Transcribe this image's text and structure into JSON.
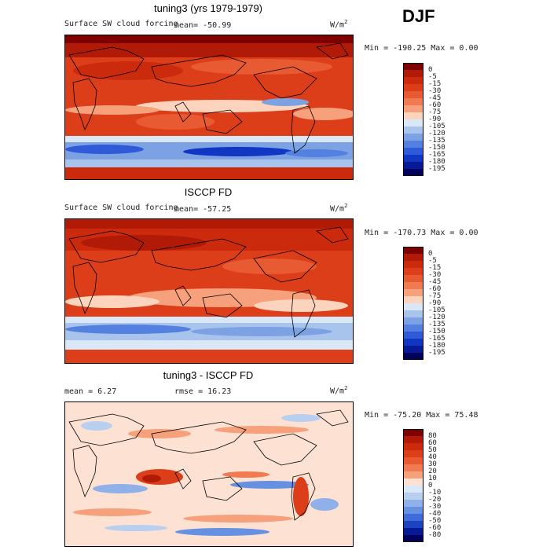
{
  "season": "DJF",
  "panels": [
    {
      "title": "tuning3 (yrs 1979-1979)",
      "variable": "Surface SW cloud forcing",
      "stat": "mean=  -50.99",
      "units": "W/m",
      "units_sup": "2",
      "minmax": "Min = -190.25 Max =    0.00"
    },
    {
      "title": "ISCCP FD",
      "variable": "Surface SW cloud forcing",
      "stat": "mean=  -57.25",
      "units": "W/m",
      "units_sup": "2",
      "minmax": "Min = -170.73 Max =    0.00"
    },
    {
      "title": "tuning3 - ISCCP FD",
      "mean_text": "mean =    6.27",
      "rmse_text": "rmse =   16.23",
      "units": "W/m",
      "units_sup": "2",
      "minmax": "Min = -75.20 Max =  75.48"
    }
  ],
  "chart_data": [
    {
      "type": "heatmap",
      "title": "tuning3 (yrs 1979-1979)",
      "variable": "Surface SW cloud forcing",
      "units": "W/m2",
      "mean": -50.99,
      "min": -190.25,
      "max": 0.0,
      "colorbar_levels": [
        "0",
        "-5",
        "-15",
        "-30",
        "-45",
        "-60",
        "-75",
        "-90",
        "-105",
        "-120",
        "-135",
        "-150",
        "-165",
        "-180",
        "-195"
      ],
      "colorbar_colors": [
        "#7f0000",
        "#b11a06",
        "#cc2a0c",
        "#dd3e1a",
        "#e85a31",
        "#f07a52",
        "#f7a07c",
        "#fcd3bd",
        "#dae7f7",
        "#a8c4ec",
        "#7da2e4",
        "#5480e0",
        "#2f5bd8",
        "#1236c4",
        "#061a96",
        "#00005f"
      ]
    },
    {
      "type": "heatmap",
      "title": "ISCCP FD",
      "variable": "Surface SW cloud forcing",
      "units": "W/m2",
      "mean": -57.25,
      "min": -170.73,
      "max": 0.0,
      "colorbar_levels": [
        "0",
        "-5",
        "-15",
        "-30",
        "-45",
        "-60",
        "-75",
        "-90",
        "-105",
        "-120",
        "-135",
        "-150",
        "-165",
        "-180",
        "-195"
      ],
      "colorbar_colors": [
        "#7f0000",
        "#b11a06",
        "#cc2a0c",
        "#dd3e1a",
        "#e85a31",
        "#f07a52",
        "#f7a07c",
        "#fcd3bd",
        "#dae7f7",
        "#a8c4ec",
        "#7da2e4",
        "#5480e0",
        "#2f5bd8",
        "#1236c4",
        "#061a96",
        "#00005f"
      ]
    },
    {
      "type": "heatmap",
      "title": "tuning3 - ISCCP FD",
      "units": "W/m2",
      "mean": 6.27,
      "rmse": 16.23,
      "min": -75.2,
      "max": 75.48,
      "colorbar_levels": [
        "80",
        "60",
        "50",
        "40",
        "30",
        "20",
        "10",
        "0",
        "-10",
        "-20",
        "-30",
        "-40",
        "-50",
        "-60",
        "-80"
      ],
      "colorbar_colors": [
        "#7f0000",
        "#b11a06",
        "#cc2a0c",
        "#dd3e1a",
        "#e85a31",
        "#f07a52",
        "#f7a07c",
        "#fde2d3",
        "#dae7f7",
        "#b9cff0",
        "#8fb0e8",
        "#6690e2",
        "#3f6cd8",
        "#1d42c2",
        "#061a96",
        "#00005f"
      ]
    }
  ]
}
